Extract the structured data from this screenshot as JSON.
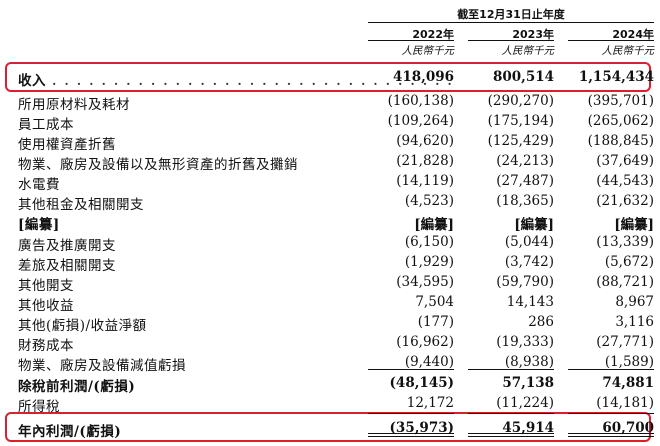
{
  "header": {
    "group": "截至12月31日止年度",
    "years": [
      "2022年",
      "2023年",
      "2024年"
    ],
    "unit": "人民幣千元"
  },
  "rows": [
    {
      "label": "收入",
      "values": [
        "418,096",
        "800,514",
        "1,154,434"
      ],
      "bold": true,
      "leader": true
    },
    {
      "label": "所用原材料及耗材",
      "values": [
        "(160,138)",
        "(290,270)",
        "(395,701)"
      ]
    },
    {
      "label": "員工成本",
      "values": [
        "(109,264)",
        "(175,194)",
        "(265,062)"
      ]
    },
    {
      "label": "使用權資產折舊",
      "values": [
        "(94,620)",
        "(125,429)",
        "(188,845)"
      ]
    },
    {
      "label": "物業、廠房及設備以及無形資產的折舊及攤銷",
      "values": [
        "(21,828)",
        "(24,213)",
        "(37,649)"
      ]
    },
    {
      "label": "水電費",
      "values": [
        "(14,119)",
        "(27,487)",
        "(44,543)"
      ]
    },
    {
      "label": "其他租金及相關開支",
      "values": [
        "(4,523)",
        "(18,365)",
        "(21,632)"
      ]
    },
    {
      "label": "[編纂]",
      "values": [
        "[編纂]",
        "[編纂]",
        "[編纂]"
      ],
      "bold": true
    },
    {
      "label": "廣告及推廣開支",
      "values": [
        "(6,150)",
        "(5,044)",
        "(13,339)"
      ]
    },
    {
      "label": "差旅及相關開支",
      "values": [
        "(1,929)",
        "(3,742)",
        "(5,672)"
      ]
    },
    {
      "label": "其他開支",
      "values": [
        "(34,595)",
        "(59,790)",
        "(88,721)"
      ]
    },
    {
      "label": "其他收益",
      "values": [
        "7,504",
        "14,143",
        "8,967"
      ]
    },
    {
      "label": "其他(虧損)/收益淨額",
      "values": [
        "(177)",
        "286",
        "3,116"
      ]
    },
    {
      "label": "財務成本",
      "values": [
        "(16,962)",
        "(19,333)",
        "(27,771)"
      ]
    },
    {
      "label": "物業、廠房及設備減值虧損",
      "values": [
        "(9,440)",
        "(8,938)",
        "(1,589)"
      ]
    },
    {
      "label": "除稅前利潤/(虧損)",
      "values": [
        "(48,145)",
        "57,138",
        "74,881"
      ],
      "bold": true
    },
    {
      "label": "所得稅",
      "values": [
        "12,172",
        "(11,224)",
        "(14,181)"
      ]
    },
    {
      "label": "年內利潤/(虧損)",
      "values": [
        "(35,973)",
        "45,914",
        "60,700"
      ],
      "bold": true
    }
  ]
}
